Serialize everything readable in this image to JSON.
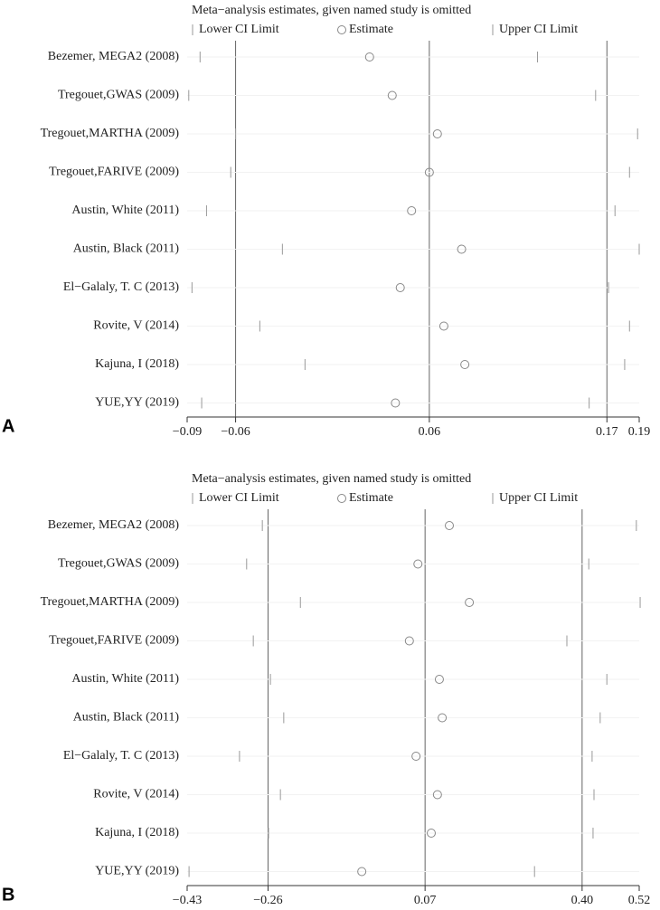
{
  "chart_data": [
    {
      "type": "interval",
      "panel_label": "A",
      "title": "Meta−analysis estimates, given named study is omitted",
      "categories": [
        "Bezemer, MEGA2 (2008)",
        "Tregouet,GWAS (2009)",
        "Tregouet,MARTHA (2009)",
        "Tregouet,FARIVE (2009)",
        "Austin, White (2011)",
        "Austin, Black (2011)",
        "El−Galaly, T. C (2013)",
        "Rovite, V (2014)",
        "Kajuna, I (2018)",
        "YUE,YY (2019)"
      ],
      "series": [
        {
          "name": "Lower CI Limit",
          "marker": "line",
          "color": "#999999",
          "values": [
            -0.082,
            -0.089,
            -0.06,
            -0.063,
            -0.078,
            -0.031,
            -0.087,
            -0.045,
            -0.017,
            -0.081
          ]
        },
        {
          "name": "Estimate",
          "marker": "circle",
          "color": "#888888",
          "values": [
            0.023,
            0.037,
            0.065,
            0.06,
            0.049,
            0.08,
            0.042,
            0.069,
            0.082,
            0.039
          ]
        },
        {
          "name": "Upper CI Limit",
          "marker": "line",
          "color": "#999999",
          "values": [
            0.127,
            0.163,
            0.189,
            0.184,
            0.175,
            0.19,
            0.171,
            0.184,
            0.181,
            0.159
          ]
        }
      ],
      "xlim": [
        -0.09,
        0.19
      ],
      "xticks": [
        {
          "value": -0.09,
          "label": "−0.09"
        },
        {
          "value": -0.06,
          "label": "−0.06"
        },
        0.06,
        0.17,
        0.19
      ],
      "grid": true
    },
    {
      "type": "interval",
      "panel_label": "B",
      "title": "Meta−analysis estimates, given named study is omitted",
      "categories": [
        "Bezemer, MEGA2 (2008)",
        "Tregouet,GWAS (2009)",
        "Tregouet,MARTHA (2009)",
        "Tregouet,FARIVE (2009)",
        "Austin, White (2011)",
        "Austin, Black (2011)",
        "El−Galaly, T. C (2013)",
        "Rovite, V (2014)",
        "Kajuna, I (2018)",
        "YUE,YY (2019)"
      ],
      "series": [
        {
          "name": "Lower CI Limit",
          "marker": "line",
          "color": "#999999",
          "values": [
            -0.272,
            -0.305,
            -0.192,
            -0.291,
            -0.255,
            -0.227,
            -0.32,
            -0.234,
            -0.259,
            -0.426
          ]
        },
        {
          "name": "Estimate",
          "marker": "circle",
          "color": "#888888",
          "values": [
            0.121,
            0.055,
            0.163,
            0.037,
            0.1,
            0.106,
            0.051,
            0.096,
            0.083,
            -0.063
          ]
        },
        {
          "name": "Upper CI Limit",
          "marker": "line",
          "color": "#999999",
          "values": [
            0.514,
            0.414,
            0.522,
            0.368,
            0.452,
            0.438,
            0.421,
            0.425,
            0.423,
            0.3
          ]
        }
      ],
      "xlim": [
        -0.43,
        0.52
      ],
      "xticks": [
        {
          "value": -0.43,
          "label": "−0.43"
        },
        {
          "value": -0.26,
          "label": "−0.26"
        },
        0.07,
        {
          "value": 0.4,
          "label": "0.40"
        },
        0.52
      ],
      "grid": true
    }
  ]
}
